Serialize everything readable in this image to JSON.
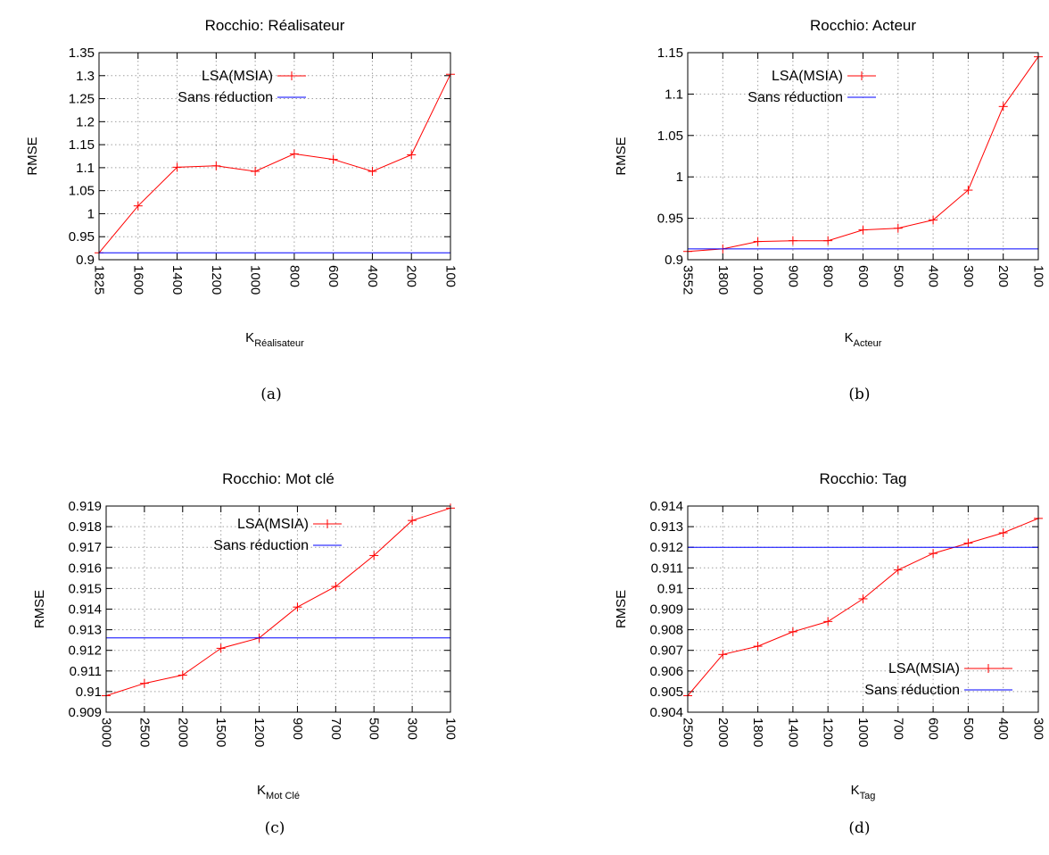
{
  "chart_data": [
    {
      "type": "line",
      "title": "Rocchio: Réalisateur",
      "caption": "(a)",
      "xlabel_main": "K",
      "xlabel_sub": "Réalisateur",
      "ylabel": "RMSE",
      "x": [
        "1825",
        "1600",
        "1400",
        "1200",
        "1000",
        "800",
        "600",
        "400",
        "200",
        "100"
      ],
      "ylim": [
        0.9,
        1.35
      ],
      "yticks": [
        0.9,
        0.95,
        1,
        1.05,
        1.1,
        1.15,
        1.2,
        1.25,
        1.3,
        1.35
      ],
      "grid": true,
      "legend_position": "top-left",
      "series": [
        {
          "name": "LSA(MSIA)",
          "color": "#ff0000",
          "marker": "plus",
          "values": [
            0.915,
            1.017,
            1.101,
            1.104,
            1.092,
            1.13,
            1.118,
            1.092,
            1.128,
            1.303
          ]
        },
        {
          "name": "Sans réduction",
          "color": "#0000ff",
          "marker": "none",
          "values": [
            0.915,
            0.915,
            0.915,
            0.915,
            0.915,
            0.915,
            0.915,
            0.915,
            0.915,
            0.915
          ]
        }
      ]
    },
    {
      "type": "line",
      "title": "Rocchio: Acteur",
      "caption": "(b)",
      "xlabel_main": "K",
      "xlabel_sub": "Acteur",
      "ylabel": "RMSE",
      "x": [
        "3552",
        "1800",
        "1000",
        "900",
        "800",
        "600",
        "500",
        "400",
        "300",
        "200",
        "100"
      ],
      "ylim": [
        0.9,
        1.15
      ],
      "yticks": [
        0.9,
        0.95,
        1,
        1.05,
        1.1,
        1.15
      ],
      "grid": true,
      "legend_position": "top-left",
      "series": [
        {
          "name": "LSA(MSIA)",
          "color": "#ff0000",
          "marker": "plus",
          "values": [
            0.91,
            0.913,
            0.922,
            0.923,
            0.923,
            0.936,
            0.938,
            0.948,
            0.984,
            1.085,
            1.145
          ]
        },
        {
          "name": "Sans réduction",
          "color": "#0000ff",
          "marker": "none",
          "values": [
            0.913,
            0.913,
            0.913,
            0.913,
            0.913,
            0.913,
            0.913,
            0.913,
            0.913,
            0.913,
            0.913
          ]
        }
      ]
    },
    {
      "type": "line",
      "title": "Rocchio: Mot clé",
      "caption": "(c)",
      "xlabel_main": "K",
      "xlabel_sub": "Mot Clé",
      "ylabel": "RMSE",
      "x": [
        "3000",
        "2500",
        "2000",
        "1500",
        "1200",
        "900",
        "700",
        "500",
        "300",
        "100"
      ],
      "ylim": [
        0.909,
        0.919
      ],
      "yticks": [
        0.909,
        0.91,
        0.911,
        0.912,
        0.913,
        0.914,
        0.915,
        0.916,
        0.917,
        0.918,
        0.919
      ],
      "grid": true,
      "legend_position": "top-left",
      "series": [
        {
          "name": "LSA(MSIA)",
          "color": "#ff0000",
          "marker": "plus",
          "values": [
            0.9098,
            0.9104,
            0.9108,
            0.9121,
            0.9126,
            0.9141,
            0.9151,
            0.9166,
            0.9183,
            0.9189
          ]
        },
        {
          "name": "Sans réduction",
          "color": "#0000ff",
          "marker": "none",
          "values": [
            0.9126,
            0.9126,
            0.9126,
            0.9126,
            0.9126,
            0.9126,
            0.9126,
            0.9126,
            0.9126,
            0.9126
          ]
        }
      ]
    },
    {
      "type": "line",
      "title": "Rocchio: Tag",
      "caption": "(d)",
      "xlabel_main": "K",
      "xlabel_sub": "Tag",
      "ylabel": "RMSE",
      "x": [
        "2500",
        "2000",
        "1800",
        "1400",
        "1200",
        "1000",
        "700",
        "600",
        "500",
        "400",
        "300"
      ],
      "ylim": [
        0.904,
        0.914
      ],
      "yticks": [
        0.904,
        0.905,
        0.906,
        0.907,
        0.908,
        0.909,
        0.91,
        0.911,
        0.912,
        0.913,
        0.914
      ],
      "grid": true,
      "legend_position": "bottom-right",
      "series": [
        {
          "name": "LSA(MSIA)",
          "color": "#ff0000",
          "marker": "plus",
          "values": [
            0.9048,
            0.9068,
            0.9072,
            0.9079,
            0.9084,
            0.9095,
            0.9109,
            0.9117,
            0.9122,
            0.9127,
            0.9134
          ]
        },
        {
          "name": "Sans réduction",
          "color": "#0000ff",
          "marker": "none",
          "values": [
            0.912,
            0.912,
            0.912,
            0.912,
            0.912,
            0.912,
            0.912,
            0.912,
            0.912,
            0.912,
            0.912
          ]
        }
      ]
    }
  ]
}
